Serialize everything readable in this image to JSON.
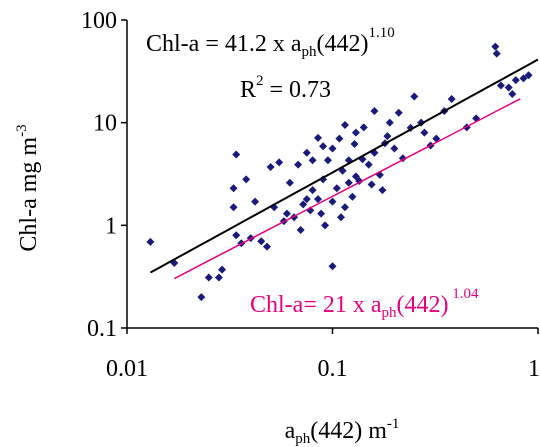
{
  "chart_data": {
    "type": "scatter",
    "title": "",
    "xlabel": {
      "base": "a",
      "sub": "ph",
      "rest": "(442) m",
      "sup": "-1"
    },
    "ylabel": {
      "text": "Chl-a mg m",
      "sup": "-3"
    },
    "xscale": "log",
    "yscale": "log",
    "xlim": [
      0.01,
      1
    ],
    "ylim": [
      0.1,
      100
    ],
    "xticks": [
      {
        "value": 0.01,
        "label": "0.01"
      },
      {
        "value": 0.1,
        "label": "0.1"
      },
      {
        "value": 1,
        "label": "1"
      }
    ],
    "yticks": [
      {
        "value": 0.1,
        "label": "0.1"
      },
      {
        "value": 1,
        "label": "1"
      },
      {
        "value": 10,
        "label": "10"
      },
      {
        "value": 100,
        "label": "100"
      }
    ],
    "grid": false,
    "legend": "none",
    "marker_color": "#1a1a7a",
    "points": [
      {
        "x": 0.013,
        "y": 0.69
      },
      {
        "x": 0.017,
        "y": 0.43
      },
      {
        "x": 0.023,
        "y": 0.2
      },
      {
        "x": 0.025,
        "y": 0.31
      },
      {
        "x": 0.028,
        "y": 0.31
      },
      {
        "x": 0.029,
        "y": 0.37
      },
      {
        "x": 0.033,
        "y": 2.3
      },
      {
        "x": 0.033,
        "y": 1.5
      },
      {
        "x": 0.034,
        "y": 0.8
      },
      {
        "x": 0.034,
        "y": 4.9
      },
      {
        "x": 0.036,
        "y": 0.67
      },
      {
        "x": 0.038,
        "y": 2.8
      },
      {
        "x": 0.04,
        "y": 0.75
      },
      {
        "x": 0.042,
        "y": 1.7
      },
      {
        "x": 0.045,
        "y": 0.7
      },
      {
        "x": 0.048,
        "y": 0.62
      },
      {
        "x": 0.05,
        "y": 3.7
      },
      {
        "x": 0.052,
        "y": 1.5
      },
      {
        "x": 0.055,
        "y": 4.1
      },
      {
        "x": 0.058,
        "y": 1.1
      },
      {
        "x": 0.06,
        "y": 1.3
      },
      {
        "x": 0.062,
        "y": 2.6
      },
      {
        "x": 0.065,
        "y": 1.2
      },
      {
        "x": 0.068,
        "y": 3.9
      },
      {
        "x": 0.07,
        "y": 0.9
      },
      {
        "x": 0.072,
        "y": 1.6
      },
      {
        "x": 0.075,
        "y": 1.8
      },
      {
        "x": 0.075,
        "y": 5.1
      },
      {
        "x": 0.078,
        "y": 1.4
      },
      {
        "x": 0.08,
        "y": 2.2
      },
      {
        "x": 0.08,
        "y": 4.3
      },
      {
        "x": 0.085,
        "y": 1.8
      },
      {
        "x": 0.085,
        "y": 7.1
      },
      {
        "x": 0.088,
        "y": 1.3
      },
      {
        "x": 0.09,
        "y": 2.8
      },
      {
        "x": 0.09,
        "y": 5.9
      },
      {
        "x": 0.092,
        "y": 1.0
      },
      {
        "x": 0.095,
        "y": 4.3
      },
      {
        "x": 0.1,
        "y": 1.7
      },
      {
        "x": 0.1,
        "y": 5.6
      },
      {
        "x": 0.1,
        "y": 0.4
      },
      {
        "x": 0.105,
        "y": 2.3
      },
      {
        "x": 0.108,
        "y": 7.0
      },
      {
        "x": 0.11,
        "y": 1.2
      },
      {
        "x": 0.112,
        "y": 3.4
      },
      {
        "x": 0.115,
        "y": 1.5
      },
      {
        "x": 0.115,
        "y": 9.5
      },
      {
        "x": 0.12,
        "y": 2.6
      },
      {
        "x": 0.12,
        "y": 4.3
      },
      {
        "x": 0.125,
        "y": 1.9
      },
      {
        "x": 0.128,
        "y": 6.2
      },
      {
        "x": 0.13,
        "y": 8.0
      },
      {
        "x": 0.13,
        "y": 3.0
      },
      {
        "x": 0.135,
        "y": 2.7
      },
      {
        "x": 0.14,
        "y": 4.4
      },
      {
        "x": 0.142,
        "y": 9.0
      },
      {
        "x": 0.15,
        "y": 3.9
      },
      {
        "x": 0.155,
        "y": 2.5
      },
      {
        "x": 0.16,
        "y": 5.1
      },
      {
        "x": 0.16,
        "y": 13.0
      },
      {
        "x": 0.17,
        "y": 3.1
      },
      {
        "x": 0.175,
        "y": 2.2
      },
      {
        "x": 0.18,
        "y": 6.3
      },
      {
        "x": 0.185,
        "y": 7.4
      },
      {
        "x": 0.19,
        "y": 10.0
      },
      {
        "x": 0.2,
        "y": 5.6
      },
      {
        "x": 0.21,
        "y": 12.5
      },
      {
        "x": 0.22,
        "y": 4.5
      },
      {
        "x": 0.24,
        "y": 8.9
      },
      {
        "x": 0.25,
        "y": 18.0
      },
      {
        "x": 0.27,
        "y": 10.0
      },
      {
        "x": 0.28,
        "y": 8.0
      },
      {
        "x": 0.3,
        "y": 6.0
      },
      {
        "x": 0.32,
        "y": 7.0
      },
      {
        "x": 0.35,
        "y": 13.0
      },
      {
        "x": 0.38,
        "y": 17.0
      },
      {
        "x": 0.45,
        "y": 9.0
      },
      {
        "x": 0.5,
        "y": 11.0
      },
      {
        "x": 0.62,
        "y": 55.0
      },
      {
        "x": 0.63,
        "y": 47.0
      },
      {
        "x": 0.66,
        "y": 23.0
      },
      {
        "x": 0.72,
        "y": 22.0
      },
      {
        "x": 0.75,
        "y": 19.0
      },
      {
        "x": 0.78,
        "y": 26.0
      },
      {
        "x": 0.85,
        "y": 27.0
      },
      {
        "x": 0.9,
        "y": 29.0
      }
    ],
    "fits": [
      {
        "color": "#000000",
        "coef": 41.2,
        "exp": 1.1,
        "x_range": [
          0.013,
          1.0
        ],
        "equation": {
          "pre": "Chl-a = 41.2 x a",
          "sub": "ph",
          "mid": "(442)",
          "sup": "1.10"
        },
        "r2": {
          "pre": "R",
          "sup": "2",
          "post": " = 0.73"
        }
      },
      {
        "color": "#e6007e",
        "coef": 21,
        "exp": 1.04,
        "x_range": [
          0.017,
          0.82
        ],
        "equation": {
          "pre": "Chl-a= 21 x a",
          "sub": "ph",
          "mid": "(442)",
          "sup": " 1.04"
        }
      }
    ]
  }
}
